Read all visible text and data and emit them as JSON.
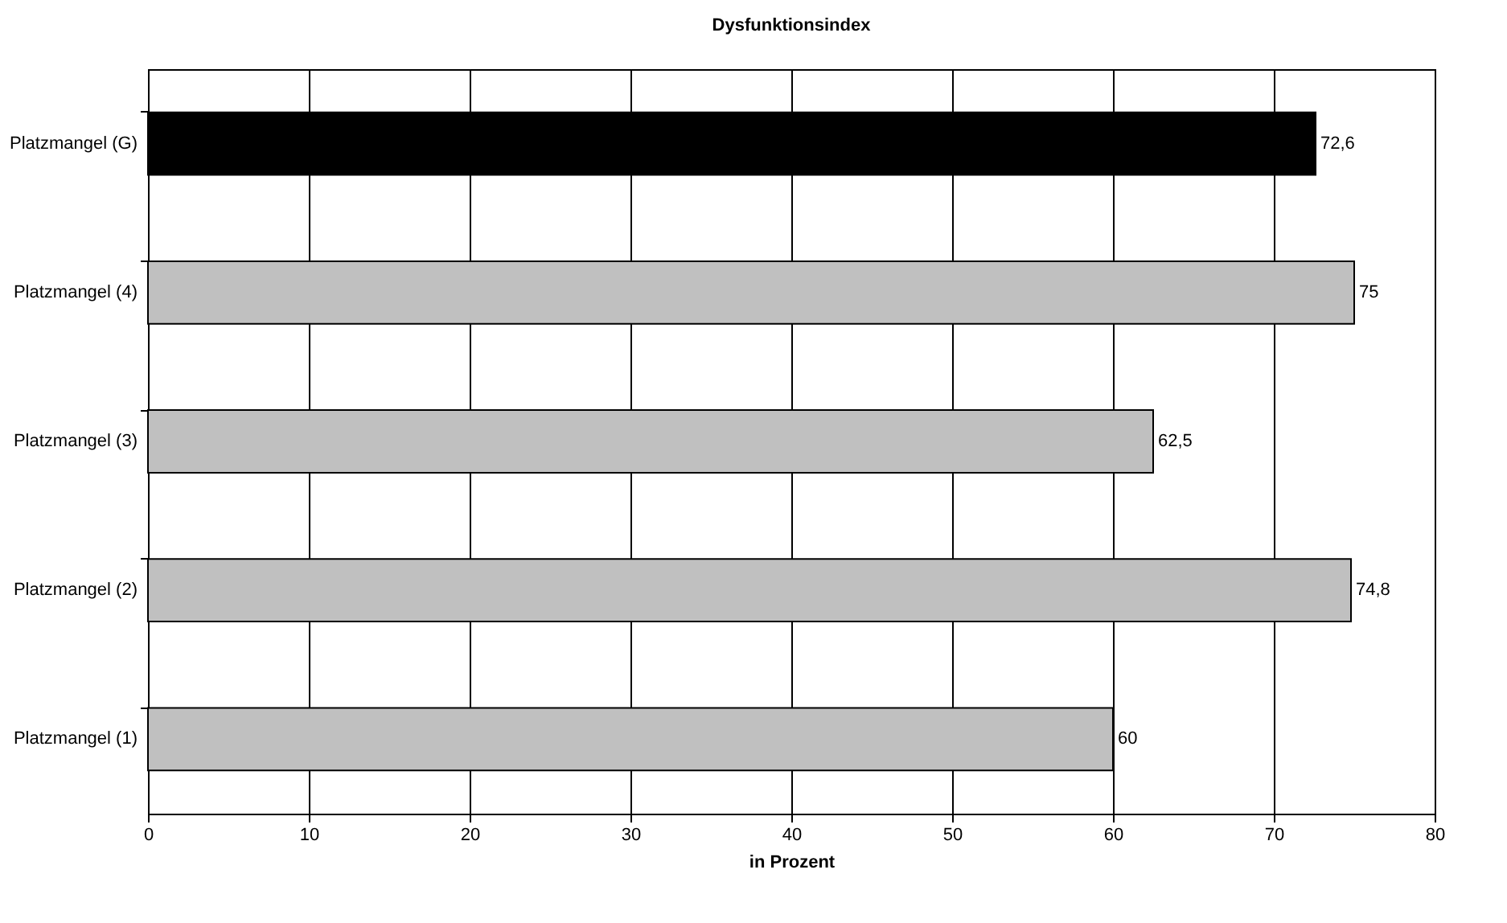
{
  "chart_data": {
    "type": "bar",
    "orientation": "horizontal",
    "title": "Dysfunktionsindex",
    "xlabel": "in Prozent",
    "categories": [
      "Platzmangel (G)",
      "Platzmangel (4)",
      "Platzmangel (3)",
      "Platzmangel (2)",
      "Platzmangel (1)"
    ],
    "values": [
      72.6,
      75,
      62.5,
      74.8,
      60
    ],
    "value_labels": [
      "72,6",
      "75",
      "62,5",
      "74,8",
      "60"
    ],
    "colors": [
      "#000000",
      "#c0c0c0",
      "#c0c0c0",
      "#c0c0c0",
      "#c0c0c0"
    ],
    "xlim": [
      0,
      80
    ],
    "xticks": [
      0,
      10,
      20,
      30,
      40,
      50,
      60,
      70,
      80
    ],
    "grid": "x"
  }
}
